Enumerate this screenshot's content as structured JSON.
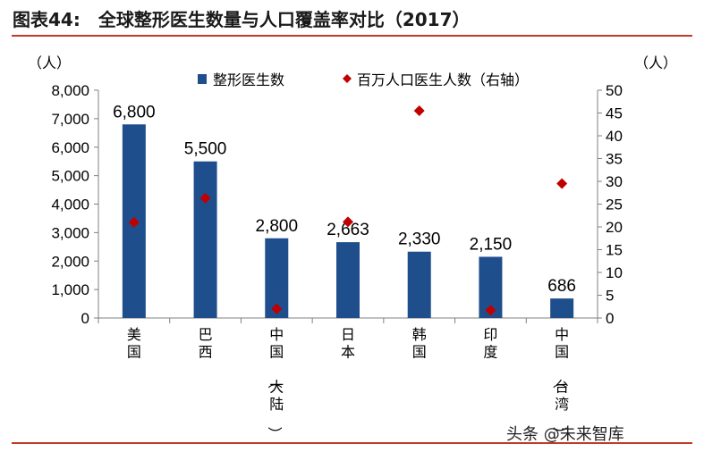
{
  "title": "图表44:　全球整形医生数量与人口覆盖率对比（2017）",
  "watermark": "头条 @未来智库",
  "colors": {
    "bar": "#1f4e8c",
    "marker": "#c00000",
    "rule": "#c0392b"
  },
  "chart_data": {
    "type": "bar",
    "categories": [
      "美国",
      "巴西",
      "中国（大陆）",
      "日本",
      "韩国",
      "印度",
      "中国（台湾）"
    ],
    "series": [
      {
        "name": "整形医生数",
        "type": "bar",
        "axis": "left",
        "values": [
          6800,
          5500,
          2800,
          2663,
          2330,
          2150,
          686
        ],
        "labels": [
          "6,800",
          "5,500",
          "2,800",
          "2,663",
          "2,330",
          "2,150",
          "686"
        ]
      },
      {
        "name": "百万人口医生人数（右轴）",
        "type": "scatter",
        "axis": "right",
        "values": [
          21,
          26.3,
          2,
          21.1,
          45.5,
          1.7,
          29.5
        ]
      }
    ],
    "left_axis": {
      "unit": "（人）",
      "min": 0,
      "max": 8000,
      "step": 1000,
      "ticks": [
        "0",
        "1,000",
        "2,000",
        "3,000",
        "4,000",
        "5,000",
        "6,000",
        "7,000",
        "8,000"
      ]
    },
    "right_axis": {
      "unit": "（人）",
      "min": 0,
      "max": 50,
      "step": 5,
      "ticks": [
        "0",
        "5",
        "10",
        "15",
        "20",
        "25",
        "30",
        "35",
        "40",
        "45",
        "50"
      ]
    },
    "legend_position": "top",
    "grid": false
  }
}
